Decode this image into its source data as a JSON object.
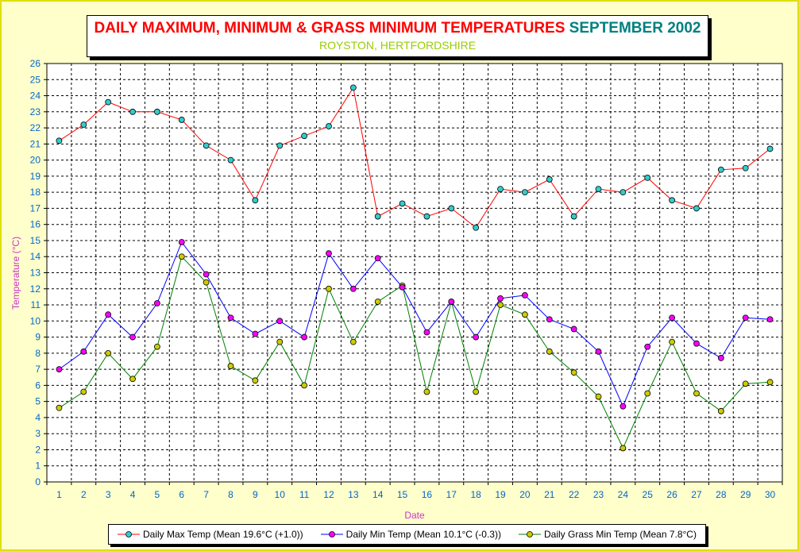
{
  "chart_data": {
    "type": "line",
    "title": "DAILY MAXIMUM, MINIMUM & GRASS MINIMUM TEMPERATURES",
    "title_period": "SEPTEMBER 2002",
    "subtitle": "ROYSTON, HERTFORDSHIRE",
    "xlabel": "Date",
    "ylabel": "Temperature (°C)",
    "ylim": [
      0,
      26
    ],
    "y_step": 1,
    "grid": true,
    "legend_position": "bottom",
    "x": [
      1,
      2,
      3,
      4,
      5,
      6,
      7,
      8,
      9,
      10,
      11,
      12,
      13,
      14,
      15,
      16,
      17,
      18,
      19,
      20,
      21,
      22,
      23,
      24,
      25,
      26,
      27,
      28,
      29,
      30
    ],
    "series": [
      {
        "name": "Daily Max Temp (Mean 19.6°C (+1.0))",
        "line_color": "#FF0000",
        "marker_color": "#33CCCC",
        "values": [
          21.2,
          22.2,
          23.6,
          23.0,
          23.0,
          22.5,
          20.9,
          20.0,
          17.5,
          20.9,
          21.5,
          22.1,
          24.5,
          16.5,
          17.3,
          16.5,
          17.0,
          15.8,
          18.2,
          18.0,
          18.8,
          16.5,
          18.2,
          18.0,
          18.9,
          17.5,
          17.0,
          19.4,
          19.5,
          20.7
        ]
      },
      {
        "name": "Daily Min Temp (Mean 10.1°C (-0.3))",
        "line_color": "#0000FF",
        "marker_color": "#FF00FF",
        "values": [
          7.0,
          8.1,
          10.4,
          9.0,
          11.1,
          14.9,
          12.9,
          10.2,
          9.2,
          10.0,
          9.0,
          14.2,
          12.0,
          13.9,
          12.1,
          9.3,
          11.2,
          9.0,
          11.4,
          11.6,
          10.1,
          9.5,
          8.1,
          4.7,
          8.4,
          10.2,
          8.6,
          7.7,
          10.2,
          10.1
        ]
      },
      {
        "name": "Daily Grass Min Temp (Mean 7.8°C)",
        "line_color": "#008000",
        "marker_color": "#CCCC00",
        "values": [
          4.6,
          5.6,
          8.0,
          6.4,
          8.4,
          14.0,
          12.4,
          7.2,
          6.3,
          8.7,
          6.0,
          12.0,
          8.7,
          11.2,
          12.2,
          5.6,
          11.2,
          5.6,
          11.0,
          10.4,
          8.1,
          6.8,
          5.3,
          2.1,
          5.5,
          8.7,
          5.5,
          4.4,
          6.1,
          6.2
        ]
      }
    ]
  },
  "colors": {
    "background": "#FFFFCC",
    "axis_text": "#0066CC",
    "axis_title": "#CC33CC"
  }
}
